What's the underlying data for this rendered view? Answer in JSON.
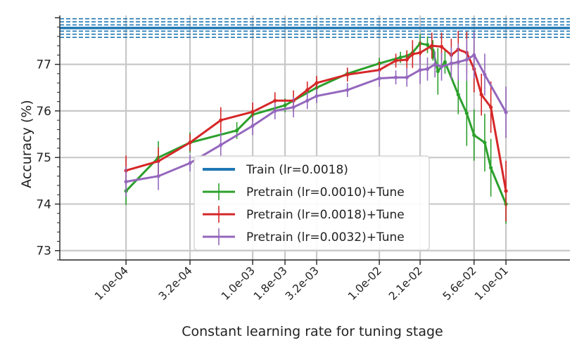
{
  "chart_data": {
    "type": "line",
    "title": "",
    "xlabel": "Constant learning rate for tuning stage",
    "ylabel": "Accuracy (%)",
    "x_scale": "log",
    "xlim": [
      3e-05,
      0.32
    ],
    "ylim": [
      72.8,
      78.05
    ],
    "grid": true,
    "legend_position": "center-left",
    "x_ticks": [
      0.0001,
      0.00032,
      0.001,
      0.0018,
      0.0032,
      0.01,
      0.021,
      0.056,
      0.1
    ],
    "x_tick_labels": [
      "1.0e-04",
      "3.2e-04",
      "1.0e-03",
      "1.8e-03",
      "3.2e-03",
      "1.0e-02",
      "2.1e-02",
      "5.6e-02",
      "1.0e-01"
    ],
    "y_ticks": [
      73,
      74,
      75,
      76,
      77
    ],
    "y_tick_labels": [
      "73",
      "74",
      "75",
      "76",
      "77"
    ],
    "reference_line": {
      "name": "Train (lr=0.0018)",
      "color": "#1f77b4",
      "value": 77.78,
      "band": [
        77.58,
        77.98
      ]
    },
    "series": [
      {
        "name": "Pretrain (lr=0.0010)+Tune",
        "color": "#2ca02c",
        "x": [
          0.0001,
          0.00018,
          0.00032,
          0.00075,
          0.001,
          0.0018,
          0.0032,
          0.0056,
          0.01,
          0.0147,
          0.0165,
          0.0183,
          0.021,
          0.024,
          0.0265,
          0.029,
          0.033,
          0.042,
          0.049,
          0.056,
          0.068,
          0.076,
          0.1
        ],
        "y": [
          74.28,
          75.0,
          75.32,
          75.58,
          75.92,
          76.12,
          76.5,
          76.8,
          77.02,
          77.15,
          77.18,
          77.25,
          77.45,
          77.42,
          77.3,
          76.85,
          77.05,
          76.35,
          75.95,
          75.48,
          75.32,
          74.78,
          74.0
        ],
        "err": [
          0.3,
          0.35,
          0.22,
          0.18,
          0.15,
          0.15,
          0.18,
          0.12,
          0.12,
          0.12,
          0.12,
          0.14,
          0.2,
          0.18,
          0.22,
          0.5,
          0.25,
          0.42,
          0.7,
          0.55,
          0.62,
          0.62,
          0.42
        ]
      },
      {
        "name": "Pretrain (lr=0.0018)+Tune",
        "color": "#d62728",
        "x": [
          0.0001,
          0.00018,
          0.00032,
          0.00056,
          0.001,
          0.0015,
          0.0021,
          0.0027,
          0.0032,
          0.0056,
          0.01,
          0.0135,
          0.0165,
          0.0183,
          0.021,
          0.026,
          0.031,
          0.037,
          0.042,
          0.049,
          0.056,
          0.064,
          0.076,
          0.1
        ],
        "y": [
          74.72,
          74.92,
          75.32,
          75.8,
          75.98,
          76.22,
          76.22,
          76.45,
          76.6,
          76.78,
          76.88,
          77.08,
          77.1,
          77.22,
          77.25,
          77.4,
          77.38,
          77.2,
          77.32,
          77.25,
          76.9,
          76.35,
          76.08,
          74.28
        ]
      },
      {
        "name": "Pretrain (lr=0.0032)+Tune",
        "color": "#9467bd",
        "x": [
          0.0001,
          0.00018,
          0.00032,
          0.00056,
          0.001,
          0.0015,
          0.0021,
          0.0027,
          0.0032,
          0.0056,
          0.01,
          0.0135,
          0.0165,
          0.021,
          0.024,
          0.0275,
          0.031,
          0.037,
          0.042,
          0.049,
          0.056,
          0.068,
          0.1
        ],
        "y": [
          74.48,
          74.6,
          74.88,
          75.27,
          75.68,
          76.0,
          76.08,
          76.22,
          76.32,
          76.45,
          76.7,
          76.72,
          76.72,
          76.88,
          76.9,
          77.0,
          76.95,
          77.02,
          77.05,
          77.1,
          77.2,
          76.78,
          75.97
        ]
      }
    ]
  }
}
